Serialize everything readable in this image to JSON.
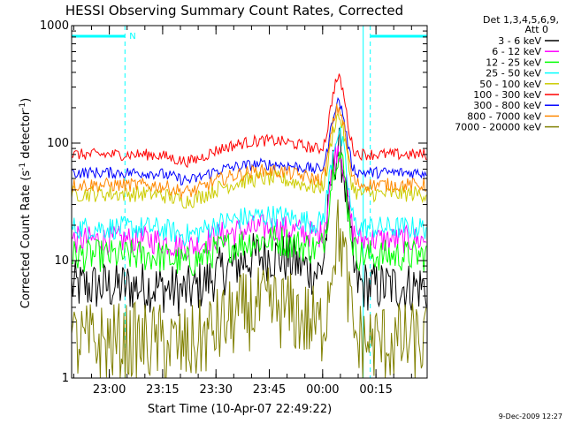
{
  "chart_data": {
    "type": "line",
    "title": "HESSI Observing Summary Count Rates, Corrected",
    "xlabel": "Start Time (10-Apr-07 22:49:22)",
    "ylabel_main": "Corrected Count Rate (s",
    "ylabel_sup1": "-1",
    "ylabel_mid": " detector",
    "ylabel_sup2": "-1",
    "ylabel_end": ")",
    "y_scale": "log",
    "ylim": [
      1,
      1000
    ],
    "xlim_minutes_after_start": [
      0,
      100
    ],
    "x_ticks": [
      {
        "label": "23:00",
        "min": 10.6
      },
      {
        "label": "23:15",
        "min": 25.6
      },
      {
        "label": "23:30",
        "min": 40.6
      },
      {
        "label": "23:45",
        "min": 55.6
      },
      {
        "label": "00:00",
        "min": 70.6
      },
      {
        "label": "00:15",
        "min": 85.6
      }
    ],
    "y_ticks": [
      {
        "label": "1",
        "v": 1
      },
      {
        "label": "10",
        "v": 10
      },
      {
        "label": "100",
        "v": 100
      },
      {
        "label": "1000",
        "v": 1000
      }
    ],
    "legend_header": [
      "Det 1,3,4,5,6,9,",
      "Att 0"
    ],
    "legend_placement": "right",
    "night_marker": "N",
    "night_intervals_min": [
      [
        0,
        15
      ],
      [
        84,
        100
      ]
    ],
    "series": [
      {
        "name": "3 - 6 keV",
        "color": "#000000",
        "base": 6,
        "bump": 11,
        "peak": 80,
        "noise": 0.22
      },
      {
        "name": "6 - 12 keV",
        "color": "#ff00ff",
        "base": 15,
        "bump": 19,
        "peak": 75,
        "noise": 0.12
      },
      {
        "name": "12 - 25 keV",
        "color": "#00ff00",
        "base": 11,
        "bump": 15,
        "peak": 70,
        "noise": 0.14
      },
      {
        "name": "25 - 50 keV",
        "color": "#00ffff",
        "base": 19,
        "bump": 24,
        "peak": 100,
        "noise": 0.1
      },
      {
        "name": "50 - 100 keV",
        "color": "#cccc00",
        "base": 37,
        "bump": 50,
        "peak": 130,
        "noise": 0.07
      },
      {
        "name": "100 - 300 keV",
        "color": "#ff0000",
        "base": 80,
        "bump": 105,
        "peak": 270,
        "noise": 0.05
      },
      {
        "name": "300 - 800 keV",
        "color": "#0000ff",
        "base": 56,
        "bump": 66,
        "peak": 165,
        "noise": 0.05
      },
      {
        "name": "800 - 7000 keV",
        "color": "#ff8800",
        "base": 44,
        "bump": 58,
        "peak": 150,
        "noise": 0.06
      },
      {
        "name": "7000 - 20000 keV",
        "color": "#808000",
        "base": 2,
        "bump": 4,
        "peak": 14,
        "noise": 0.35
      }
    ],
    "timestamp": "9-Dec-2009 12:27"
  }
}
